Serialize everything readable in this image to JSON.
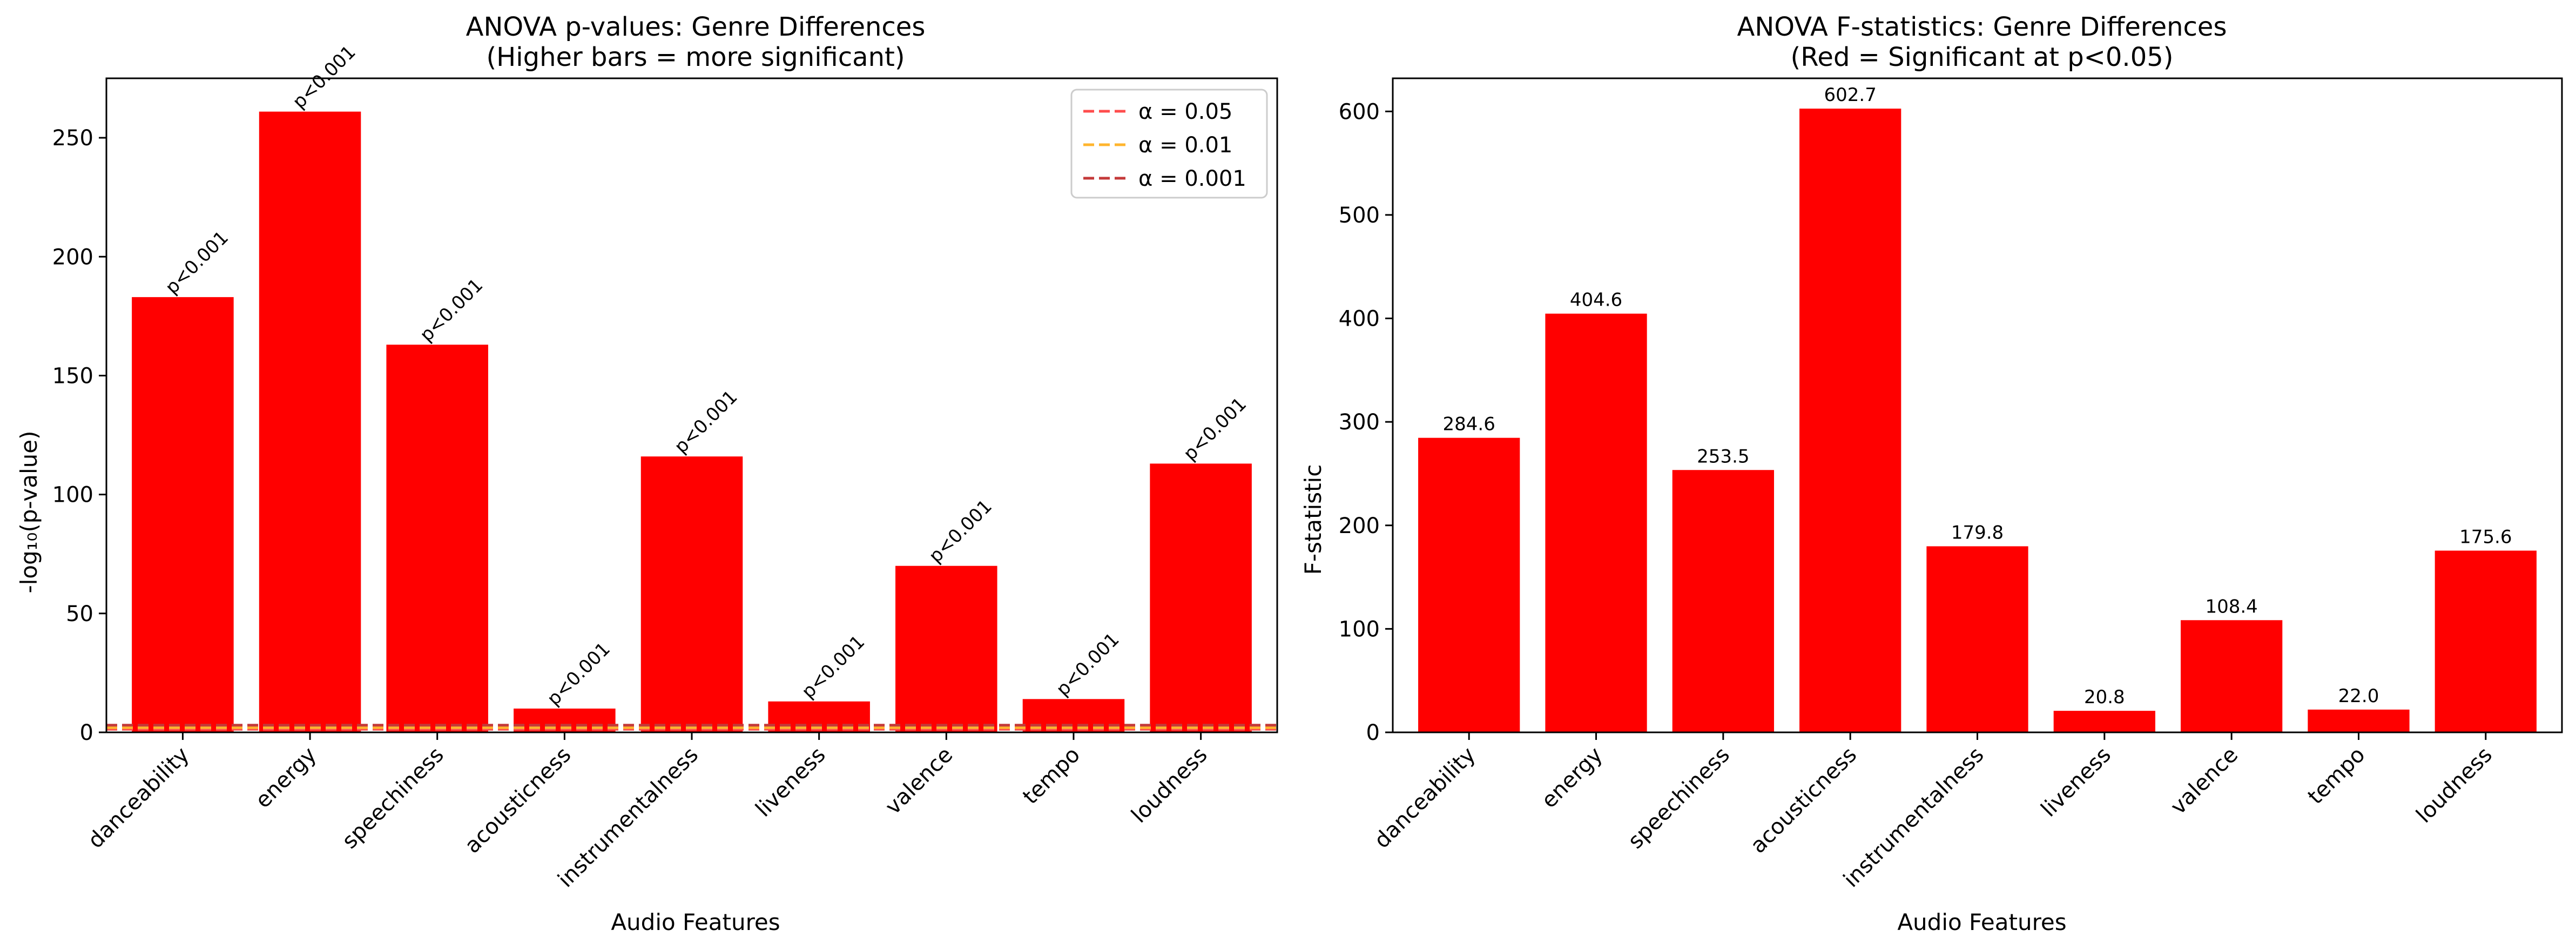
{
  "chart_data": [
    {
      "type": "bar",
      "title": "ANOVA p-values: Genre Differences",
      "subtitle": "(Higher bars = more significant)",
      "xlabel": "Audio Features",
      "ylabel": "-log₁₀(p-value)",
      "categories": [
        "danceability",
        "energy",
        "speechiness",
        "acousticness",
        "instrumentalness",
        "liveness",
        "valence",
        "tempo",
        "loudness"
      ],
      "values": [
        183,
        261,
        163,
        10,
        116,
        13,
        70,
        14,
        113
      ],
      "data_labels": [
        "p<0.001",
        "p<0.001",
        "p<0.001",
        "p<0.001",
        "p<0.001",
        "p<0.001",
        "p<0.001",
        "p<0.001",
        "p<0.001"
      ],
      "bar_color": "#ff0000",
      "ylim": [
        0,
        275
      ],
      "yticks": [
        0,
        50,
        100,
        150,
        200,
        250
      ],
      "grid": false,
      "legend": {
        "placement": "top-right",
        "entries": [
          {
            "label": "α = 0.05",
            "value": 1.301,
            "color": "#ff4d4d"
          },
          {
            "label": "α = 0.01",
            "value": 2,
            "color": "#ffb52e"
          },
          {
            "label": "α = 0.001",
            "value": 3,
            "color": "#c43a3a"
          }
        ]
      }
    },
    {
      "type": "bar",
      "title": "ANOVA F-statistics: Genre Differences",
      "subtitle": "(Red = Significant at p<0.05)",
      "xlabel": "Audio Features",
      "ylabel": "F-statistic",
      "categories": [
        "danceability",
        "energy",
        "speechiness",
        "acousticness",
        "instrumentalness",
        "liveness",
        "valence",
        "tempo",
        "loudness"
      ],
      "values": [
        284.6,
        404.6,
        253.5,
        602.7,
        179.8,
        20.8,
        108.4,
        22.0,
        175.6
      ],
      "data_labels": [
        "284.6",
        "404.6",
        "253.5",
        "602.7",
        "179.8",
        "20.8",
        "108.4",
        "22.0",
        "175.6"
      ],
      "bar_color": "#ff0000",
      "ylim": [
        0,
        632
      ],
      "yticks": [
        0,
        100,
        200,
        300,
        400,
        500,
        600
      ],
      "grid": false
    }
  ]
}
